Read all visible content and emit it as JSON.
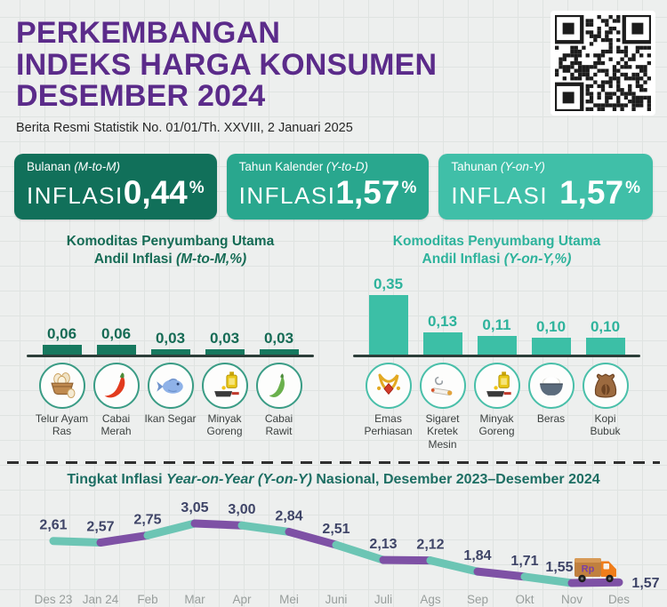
{
  "header": {
    "title_lines": [
      "PERKEMBANGAN",
      "INDEKS HARGA KONSUMEN",
      "DESEMBER 2024"
    ],
    "title_color": "#5b2b8a",
    "subtitle": "Berita Resmi Statistik No. 01/01/Th. XXVIII, 2 Januari 2025"
  },
  "stats": [
    {
      "period": "Bulanan",
      "paren": "(M-to-M)",
      "word": "INFLASI",
      "value": "0,44",
      "unit": "%",
      "bg": "#11705a"
    },
    {
      "period": "Tahun Kalender",
      "paren": "(Y-to-D)",
      "word": "INFLASI",
      "value": "1,57",
      "unit": "%",
      "bg": "#29a78e"
    },
    {
      "period": "Tahunan",
      "paren": "(Y-on-Y)",
      "word": "INFLASI",
      "value": "1,57",
      "unit": "%",
      "bg": "#40bfa8"
    }
  ],
  "panels": [
    {
      "id": "mtm",
      "title_line1": "Komoditas Penyumbang Utama",
      "title_line2_prefix": "Andil Inflasi ",
      "title_line2_italic": "(M-to-M,%)",
      "accent": "#156b55",
      "bar_color": "#17795f",
      "circle_border": "#3a9c85",
      "items": [
        {
          "label": "Telur Ayam Ras",
          "value": "0,06",
          "num": 0.06,
          "icon": "eggs-basket-icon"
        },
        {
          "label": "Cabai Merah",
          "value": "0,06",
          "num": 0.06,
          "icon": "red-chili-icon"
        },
        {
          "label": "Ikan Segar",
          "value": "0,03",
          "num": 0.03,
          "icon": "fish-icon"
        },
        {
          "label": "Minyak Goreng",
          "value": "0,03",
          "num": 0.03,
          "icon": "cooking-oil-icon"
        },
        {
          "label": "Cabai Rawit",
          "value": "0,03",
          "num": 0.03,
          "icon": "green-chili-icon"
        }
      ]
    },
    {
      "id": "yoy",
      "title_line1": "Komoditas Penyumbang Utama",
      "title_line2_prefix": "Andil Inflasi ",
      "title_line2_italic": "(Y-on-Y,%)",
      "accent": "#2eb39c",
      "bar_color": "#3cbfa6",
      "circle_border": "#49bfa9",
      "items": [
        {
          "label": "Emas Perhiasan",
          "value": "0,35",
          "num": 0.35,
          "icon": "gold-jewelry-icon"
        },
        {
          "label": "Sigaret Kretek Mesin",
          "value": "0,13",
          "num": 0.13,
          "icon": "cigarette-icon"
        },
        {
          "label": "Minyak Goreng",
          "value": "0,11",
          "num": 0.11,
          "icon": "cooking-oil-icon"
        },
        {
          "label": "Beras",
          "value": "0,10",
          "num": 0.1,
          "icon": "rice-bowl-icon"
        },
        {
          "label": "Kopi Bubuk",
          "value": "0,10",
          "num": 0.1,
          "icon": "coffee-sack-icon"
        }
      ]
    }
  ],
  "chart_data": {
    "type": "line",
    "title": "Tingkat Inflasi Year-on-Year (Y-on-Y) Nasional, Desember 2023–Desember 2024",
    "title_prefix": "Tingkat Inflasi ",
    "title_italic": "Year-on-Year (Y-on-Y)",
    "title_suffix": " Nasional, Desember 2023–Desember 2024",
    "categories": [
      "Des 23",
      "Jan 24",
      "Feb",
      "Mar",
      "Apr",
      "Mei",
      "Juni",
      "Juli",
      "Ags",
      "Sep",
      "Okt",
      "Nov",
      "Des"
    ],
    "values": [
      2.61,
      2.57,
      2.75,
      3.05,
      3.0,
      2.84,
      2.51,
      2.13,
      2.12,
      1.84,
      1.71,
      1.55,
      1.57
    ],
    "value_labels": [
      "2,61",
      "2,57",
      "2,75",
      "3,05",
      "3,00",
      "2,84",
      "2,51",
      "2,13",
      "2,12",
      "1,84",
      "1,71",
      "1,55",
      "1,57"
    ],
    "ylim": [
      1.3,
      3.3
    ],
    "grid": false,
    "legend": "none",
    "line_color_a": "#6cc5b4",
    "line_color_b": "#7e51a5",
    "label_color": "#3e4467",
    "tick_color": "#989e9c",
    "annotation_icon": "rp-truck-icon",
    "annotation_label": "Rp"
  }
}
